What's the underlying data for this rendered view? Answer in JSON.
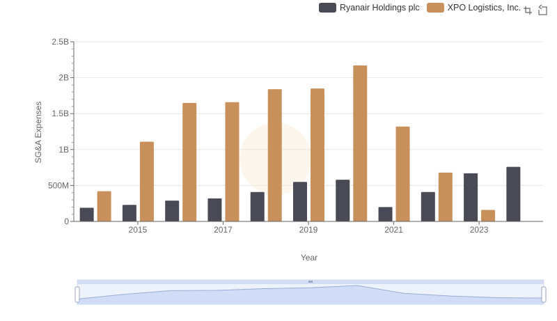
{
  "legend": {
    "items": [
      {
        "label": "Ryanair Holdings plc",
        "color": "#4a4a56"
      },
      {
        "label": "XPO Logistics, Inc.",
        "color": "#c8915c"
      }
    ]
  },
  "toolbox": {
    "icons": [
      "zoom-icon",
      "restore-icon"
    ]
  },
  "chart_data": {
    "type": "bar",
    "title": "",
    "xlabel": "Year",
    "ylabel": "SG&A Expenses",
    "ylim": [
      0,
      2500000000
    ],
    "yticks": [
      0,
      500000000,
      1000000000,
      1500000000,
      2000000000,
      2500000000
    ],
    "ytick_labels": [
      "0",
      "500M",
      "1B",
      "1.5B",
      "2B",
      "2.5B"
    ],
    "categories": [
      "2014",
      "2015",
      "2016",
      "2017",
      "2018",
      "2019",
      "2020",
      "2021",
      "2022",
      "2023",
      "2024"
    ],
    "xtick_labels": [
      "2015",
      "2017",
      "2019",
      "2021",
      "2023"
    ],
    "legend_position": "top-right",
    "grid": true,
    "series": [
      {
        "name": "Ryanair Holdings plc",
        "color": "#4a4a56",
        "values": [
          190000000,
          230000000,
          290000000,
          320000000,
          410000000,
          550000000,
          580000000,
          200000000,
          410000000,
          670000000,
          760000000
        ]
      },
      {
        "name": "XPO Logistics, Inc.",
        "color": "#c8915c",
        "values": [
          420000000,
          1110000000,
          1650000000,
          1660000000,
          1840000000,
          1850000000,
          2170000000,
          1320000000,
          680000000,
          160000000,
          null
        ]
      }
    ]
  }
}
